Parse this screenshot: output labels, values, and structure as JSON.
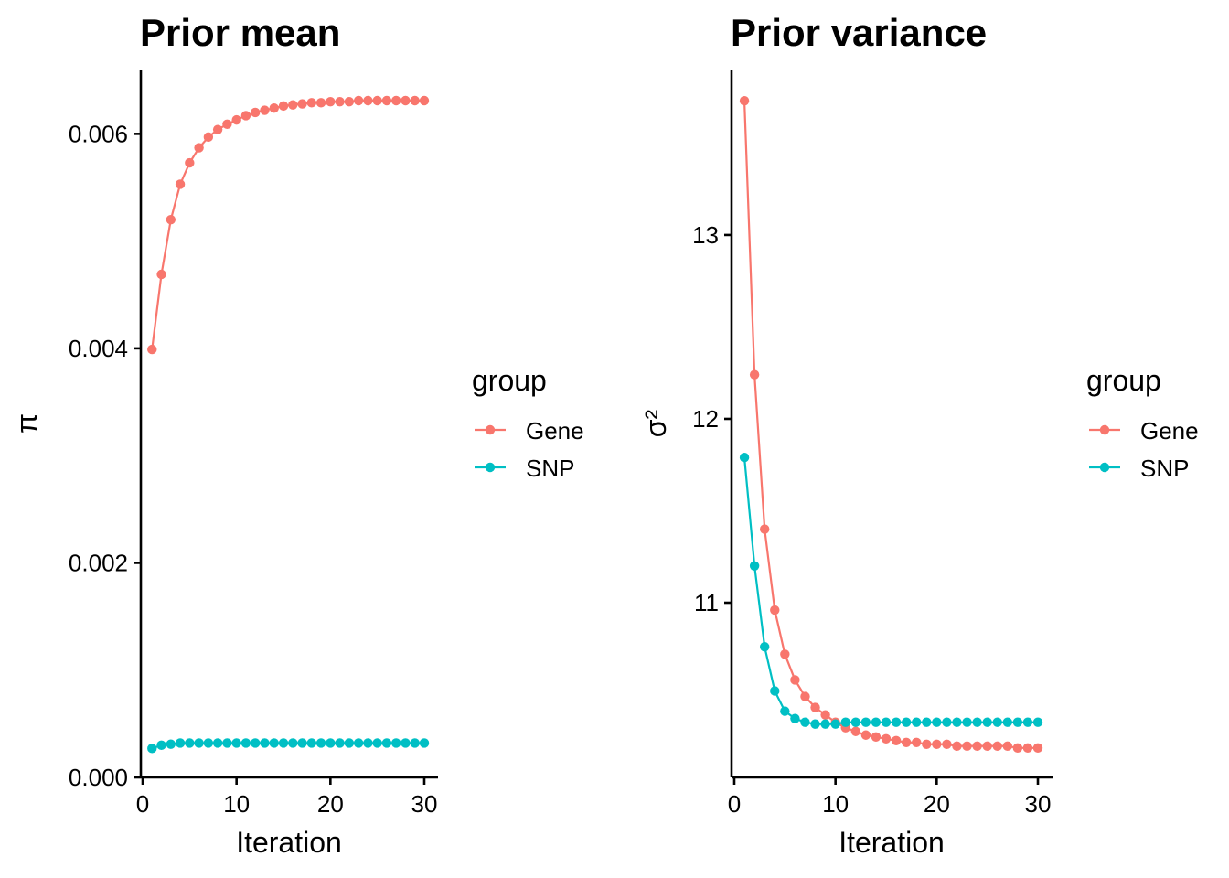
{
  "colors": {
    "Gene": "#F8766D",
    "SNP": "#00BFC4"
  },
  "legend": {
    "title": "group",
    "entries": [
      {
        "name": "Gene",
        "color": "#F8766D"
      },
      {
        "name": "SNP",
        "color": "#00BFC4"
      }
    ]
  },
  "chart_data": [
    {
      "type": "line",
      "title": "Prior mean",
      "xlabel": "Iteration",
      "ylabel": "π",
      "xlim": [
        0,
        31
      ],
      "ylim": [
        0,
        0.0066
      ],
      "xticks": [
        0,
        10,
        20,
        30
      ],
      "xtick_labels": [
        "0",
        "10",
        "20",
        "30"
      ],
      "yticks": [
        0,
        0.002,
        0.004,
        0.006
      ],
      "ytick_labels": [
        "0.000",
        "0.002",
        "0.004",
        "0.006"
      ],
      "x": [
        1,
        2,
        3,
        4,
        5,
        6,
        7,
        8,
        9,
        10,
        11,
        12,
        13,
        14,
        15,
        16,
        17,
        18,
        19,
        20,
        21,
        22,
        23,
        24,
        25,
        26,
        27,
        28,
        29,
        30
      ],
      "series": [
        {
          "name": "Gene",
          "values": [
            0.00399,
            0.00469,
            0.0052,
            0.00553,
            0.00573,
            0.00587,
            0.00597,
            0.00604,
            0.00609,
            0.00613,
            0.00617,
            0.0062,
            0.00622,
            0.00624,
            0.00626,
            0.00627,
            0.00628,
            0.00629,
            0.00629,
            0.0063,
            0.0063,
            0.0063,
            0.00631,
            0.00631,
            0.00631,
            0.00631,
            0.00631,
            0.00631,
            0.00631,
            0.00631
          ]
        },
        {
          "name": "SNP",
          "values": [
            0.00027,
            0.0003,
            0.00031,
            0.00032,
            0.00032,
            0.00032,
            0.00032,
            0.00032,
            0.00032,
            0.00032,
            0.00032,
            0.00032,
            0.00032,
            0.00032,
            0.00032,
            0.00032,
            0.00032,
            0.00032,
            0.00032,
            0.00032,
            0.00032,
            0.00032,
            0.00032,
            0.00032,
            0.00032,
            0.00032,
            0.00032,
            0.00032,
            0.00032,
            0.00032
          ]
        }
      ]
    },
    {
      "type": "line",
      "title": "Prior variance",
      "xlabel": "Iteration",
      "ylabel": "σ²",
      "xlim": [
        0,
        31
      ],
      "ylim": [
        10.05,
        13.9
      ],
      "xticks": [
        0,
        10,
        20,
        30
      ],
      "xtick_labels": [
        "0",
        "10",
        "20",
        "30"
      ],
      "yticks": [
        11,
        12,
        13
      ],
      "ytick_labels": [
        "11",
        "12",
        "13"
      ],
      "x": [
        1,
        2,
        3,
        4,
        5,
        6,
        7,
        8,
        9,
        10,
        11,
        12,
        13,
        14,
        15,
        16,
        17,
        18,
        19,
        20,
        21,
        22,
        23,
        24,
        25,
        26,
        27,
        28,
        29,
        30
      ],
      "series": [
        {
          "name": "Gene",
          "values": [
            13.73,
            12.24,
            11.4,
            10.96,
            10.72,
            10.58,
            10.49,
            10.43,
            10.39,
            10.35,
            10.32,
            10.3,
            10.28,
            10.27,
            10.26,
            10.25,
            10.24,
            10.24,
            10.23,
            10.23,
            10.23,
            10.22,
            10.22,
            10.22,
            10.22,
            10.22,
            10.22,
            10.21,
            10.21,
            10.21
          ]
        },
        {
          "name": "SNP",
          "values": [
            11.79,
            11.2,
            10.76,
            10.52,
            10.41,
            10.37,
            10.35,
            10.34,
            10.34,
            10.34,
            10.35,
            10.35,
            10.35,
            10.35,
            10.35,
            10.35,
            10.35,
            10.35,
            10.35,
            10.35,
            10.35,
            10.35,
            10.35,
            10.35,
            10.35,
            10.35,
            10.35,
            10.35,
            10.35,
            10.35
          ]
        }
      ]
    }
  ]
}
